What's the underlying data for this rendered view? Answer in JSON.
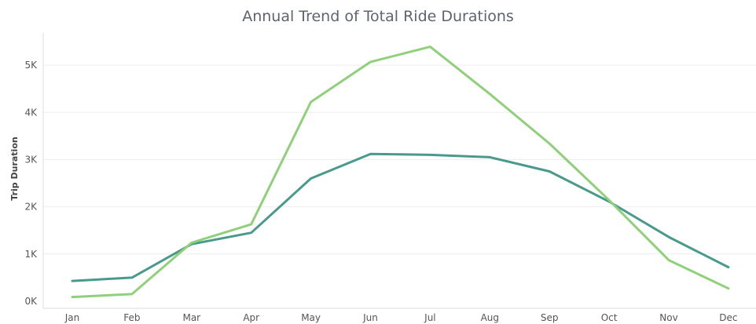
{
  "chart_data": {
    "type": "line",
    "title": "Annual Trend of Total Ride Durations",
    "xlabel": "",
    "ylabel": "Trip Duration",
    "categories": [
      "Jan",
      "Feb",
      "Mar",
      "Apr",
      "May",
      "Jun",
      "Jul",
      "Aug",
      "Sep",
      "Oct",
      "Nov",
      "Dec"
    ],
    "yticks": [
      {
        "value": 0,
        "label": "0K"
      },
      {
        "value": 1000,
        "label": "1K"
      },
      {
        "value": 2000,
        "label": "2K"
      },
      {
        "value": 3000,
        "label": "3K"
      },
      {
        "value": 4000,
        "label": "4K"
      },
      {
        "value": 5000,
        "label": "5K"
      }
    ],
    "ylim": [
      -150,
      5550
    ],
    "grid": true,
    "series": [
      {
        "color": "#4a9a8c",
        "values": [
          430,
          500,
          1210,
          1450,
          2600,
          3120,
          3100,
          3050,
          2750,
          2110,
          1360,
          720
        ]
      },
      {
        "color": "#8fd07a",
        "values": [
          90,
          150,
          1240,
          1630,
          4220,
          5070,
          5390,
          4390,
          3340,
          2140,
          870,
          270
        ]
      }
    ]
  }
}
